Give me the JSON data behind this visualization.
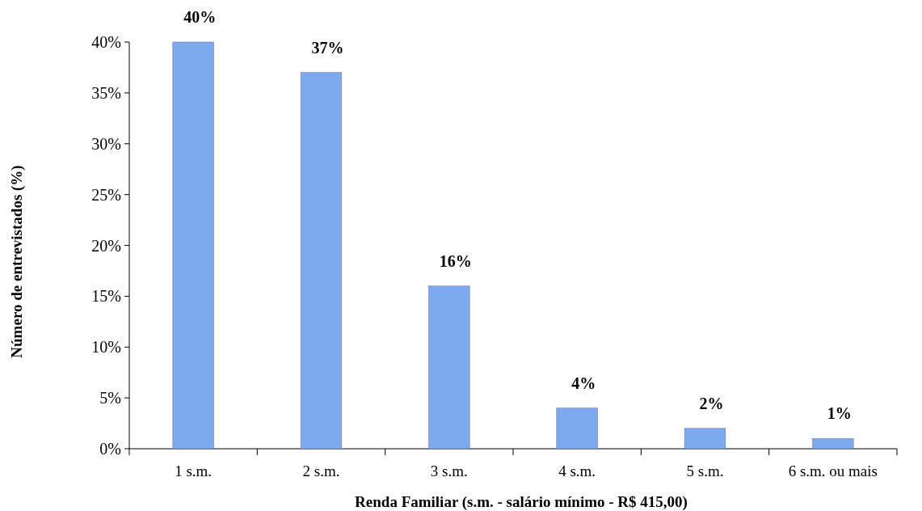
{
  "chart_data": {
    "type": "bar",
    "xlabel": "Renda Familiar (s.m. - salário mínimo - R$ 415,00)",
    "ylabel": "Número de entrevistados (%)",
    "categories": [
      "1 s.m.",
      "2 s.m.",
      "3 s.m.",
      "4 s.m.",
      "5 s.m.",
      "6 s.m. ou mais"
    ],
    "values": [
      40,
      37,
      16,
      4,
      2,
      1
    ],
    "value_labels": [
      "40%",
      "37%",
      "16%",
      "4%",
      "2%",
      "1%"
    ],
    "color": "#7fa9ee",
    "ylim": [
      0,
      40
    ],
    "yticks": [
      {
        "value": 0,
        "label": "0%"
      },
      {
        "value": 5,
        "label": "5%"
      },
      {
        "value": 10,
        "label": "10%"
      },
      {
        "value": 15,
        "label": "15%"
      },
      {
        "value": 20,
        "label": "20%"
      },
      {
        "value": 25,
        "label": "25%"
      },
      {
        "value": 30,
        "label": "30%"
      },
      {
        "value": 35,
        "label": "35%"
      },
      {
        "value": 40,
        "label": "40%"
      }
    ],
    "grid": false
  }
}
